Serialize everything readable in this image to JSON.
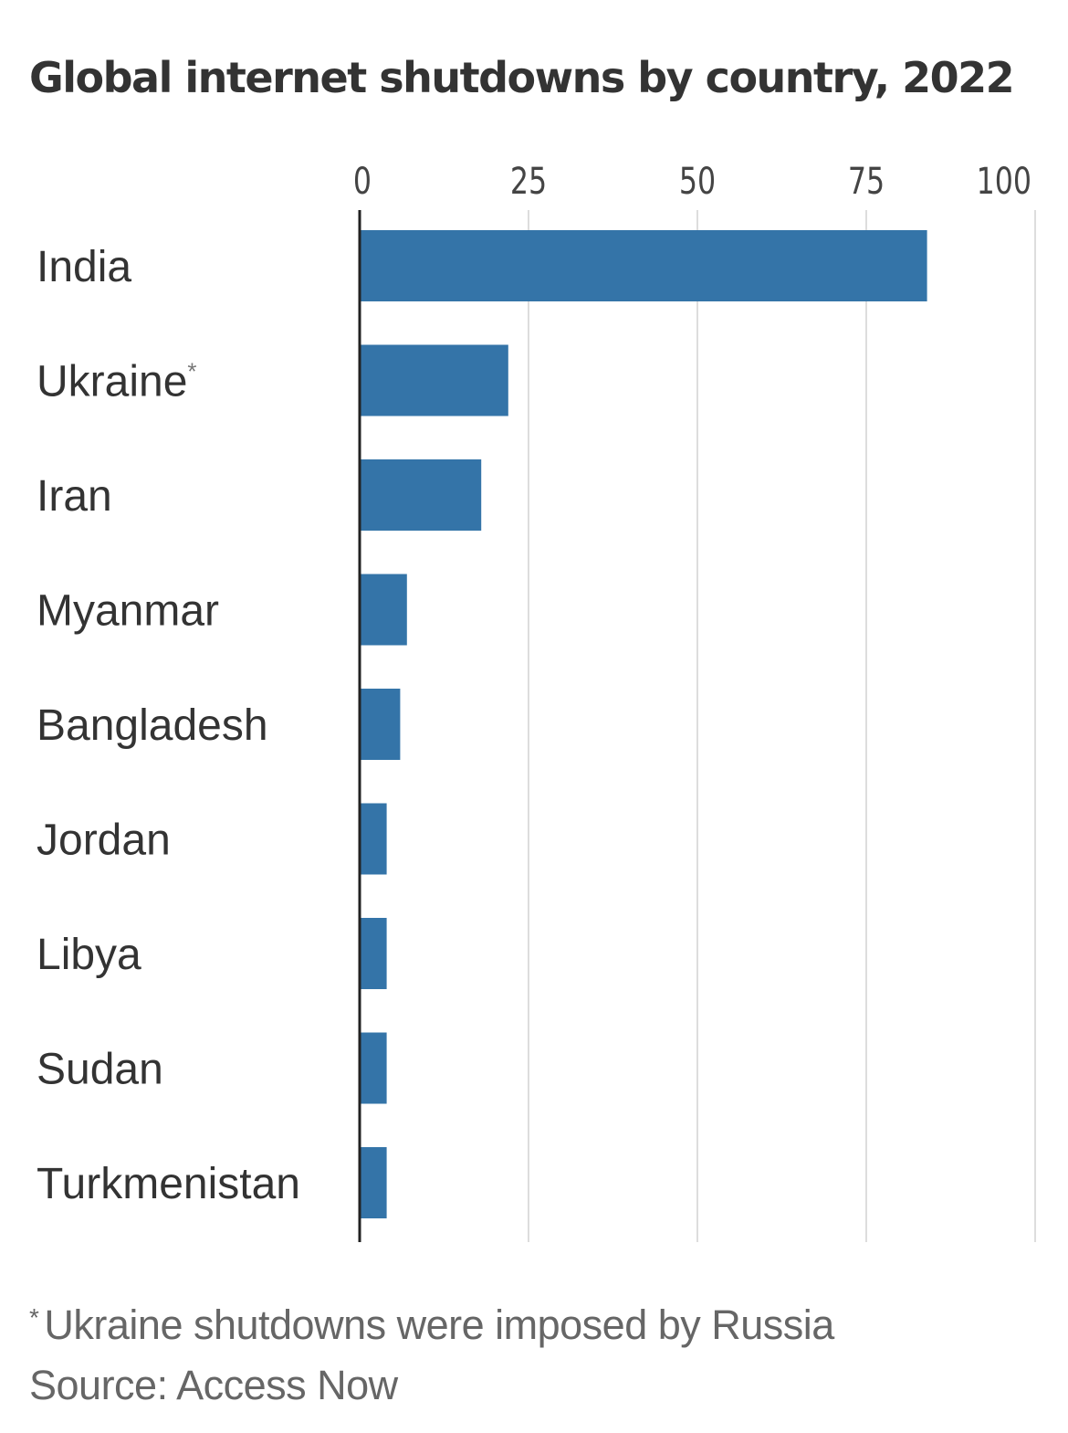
{
  "title": "Global internet shutdowns by country, 2022",
  "footnote": {
    "marker": "*",
    "text": "Ukraine shutdowns were imposed by Russia"
  },
  "source": "Source: Access Now",
  "colors": {
    "bar": "#3474a8",
    "grid": "#dddddd",
    "axis": "#222222",
    "label": "#333333",
    "tick": "#444444"
  },
  "chart_data": {
    "type": "bar",
    "orientation": "horizontal",
    "title": "Global internet shutdowns by country, 2022",
    "categories": [
      "India",
      "Ukraine*",
      "Iran",
      "Myanmar",
      "Bangladesh",
      "Jordan",
      "Libya",
      "Sudan",
      "Turkmenistan"
    ],
    "values": [
      84,
      22,
      18,
      7,
      6,
      4,
      4,
      4,
      4
    ],
    "xlim": [
      0,
      100
    ],
    "xticks": [
      0,
      25,
      50,
      75,
      100
    ],
    "xticks_position": "top",
    "grid": true,
    "legend": "none"
  }
}
